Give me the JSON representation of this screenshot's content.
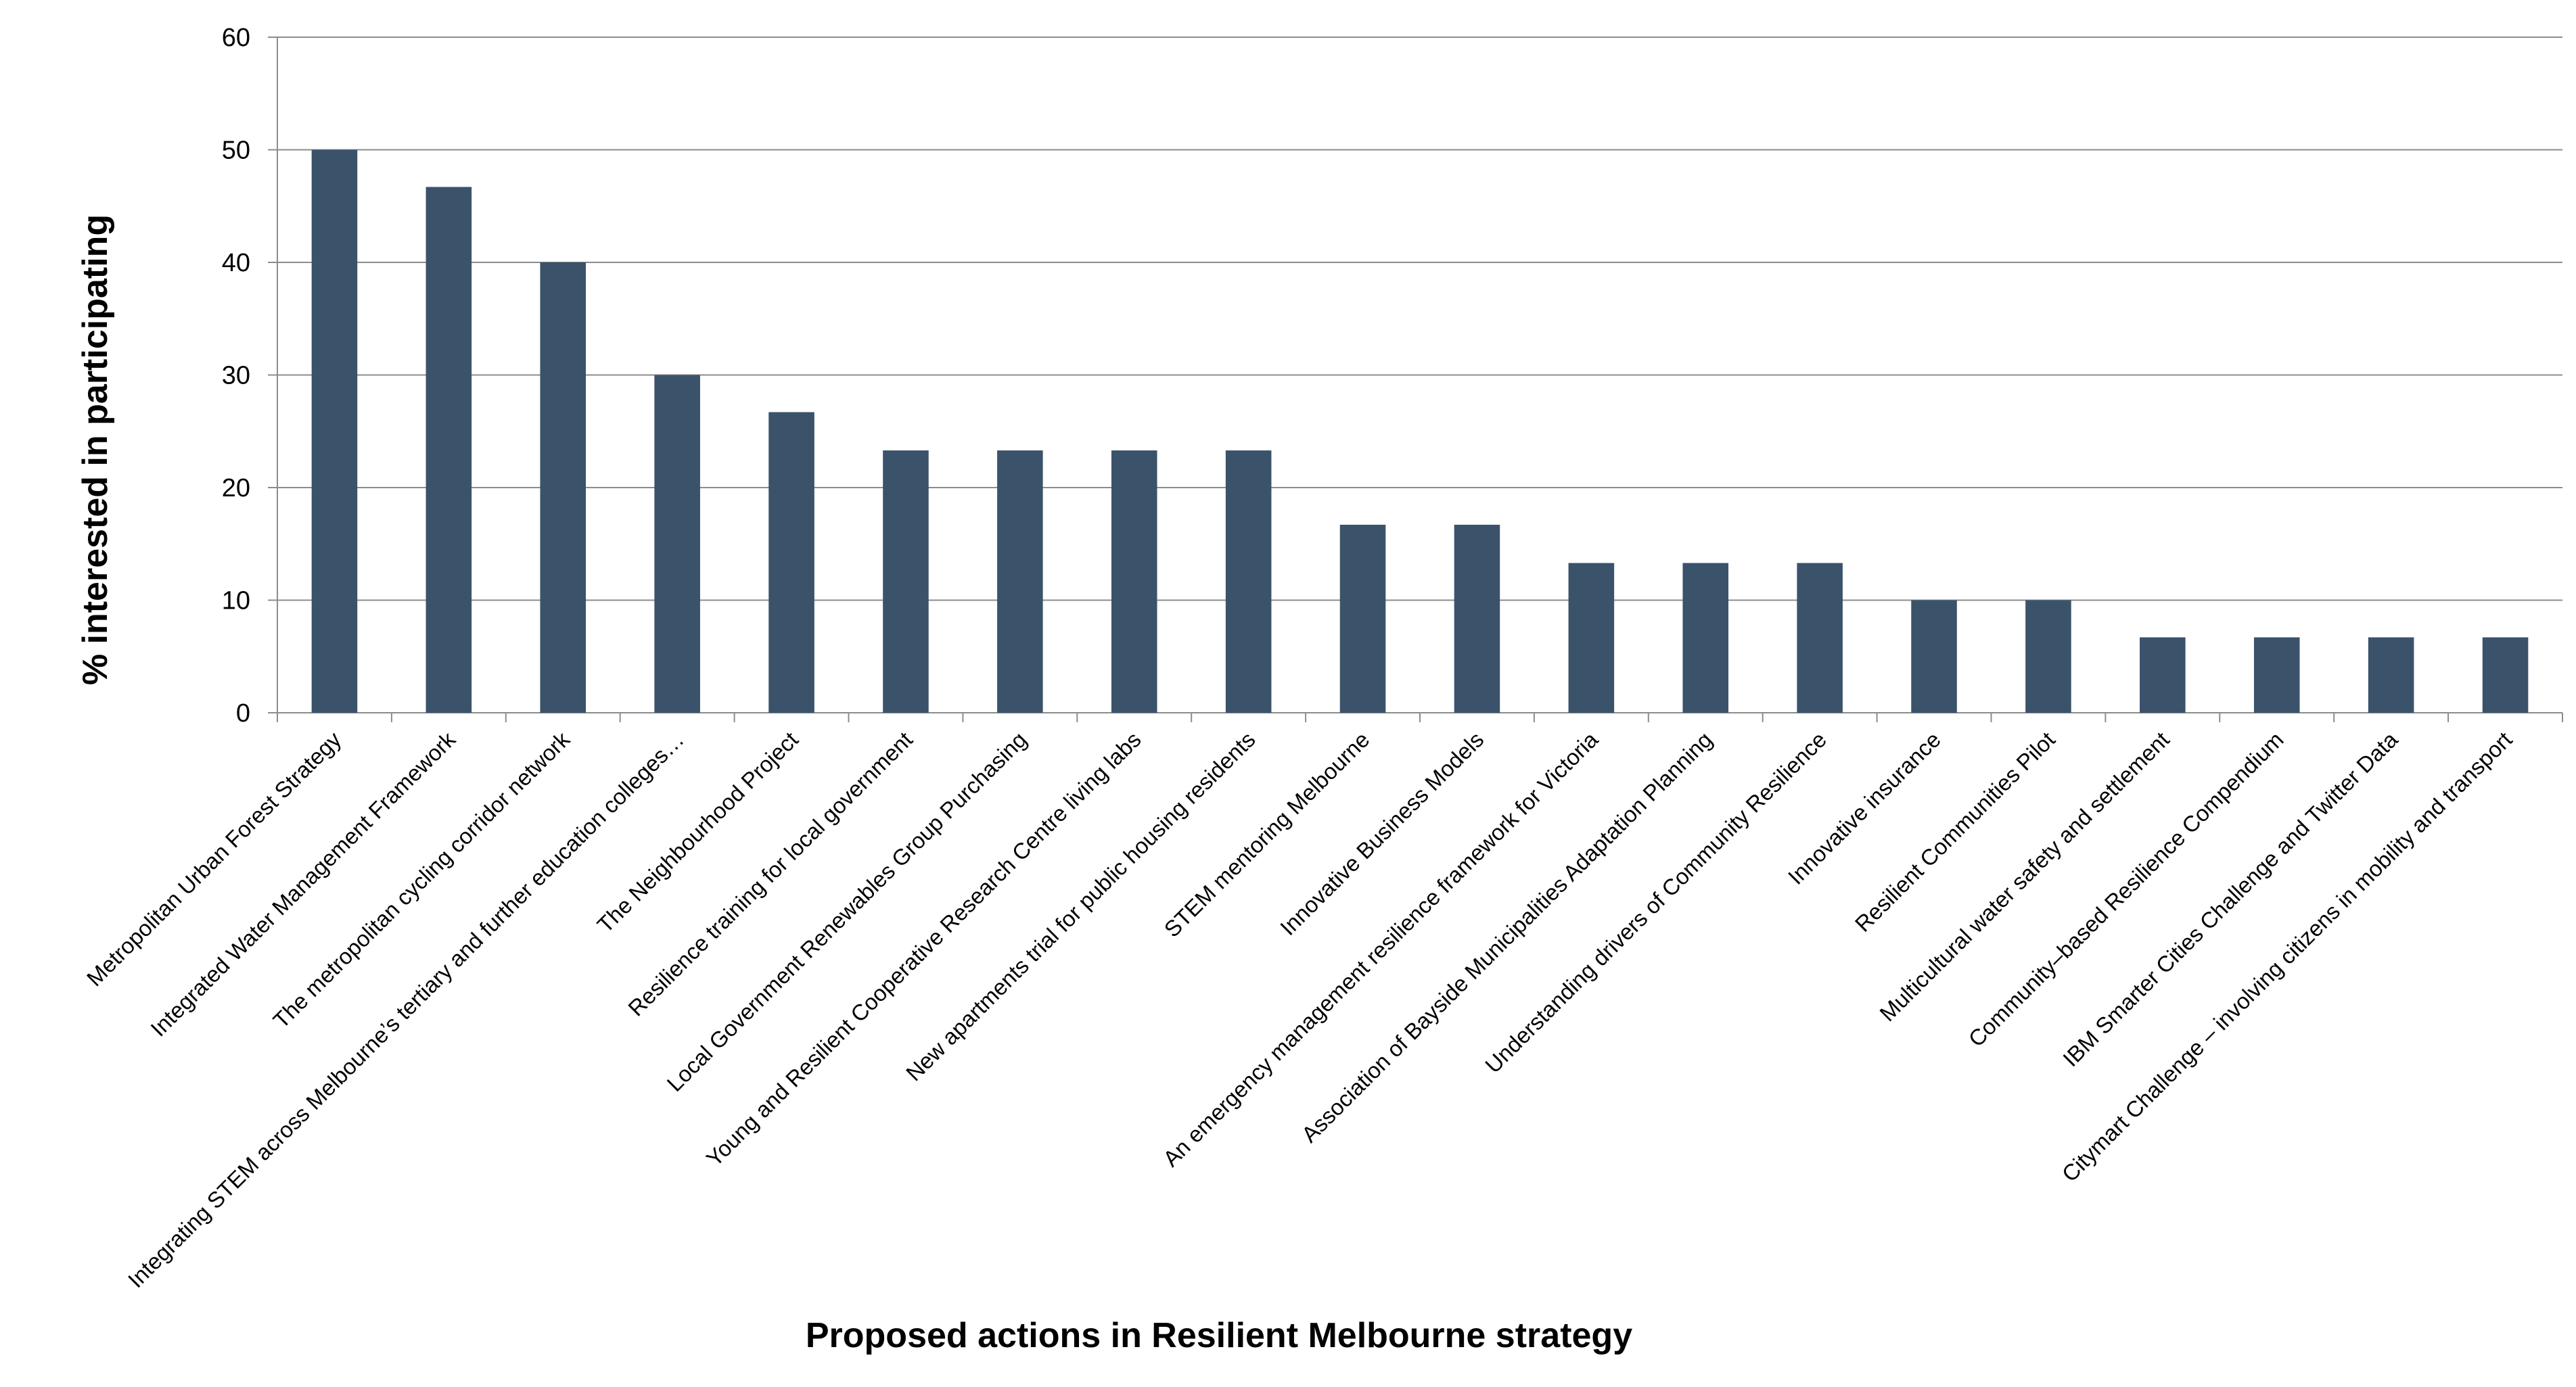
{
  "chart_data": {
    "type": "bar",
    "title": "",
    "xlabel": "Proposed actions in Resilient Melbourne strategy",
    "ylabel": "% interested in participating",
    "ylim": [
      0,
      60
    ],
    "yticks": [
      "0",
      "10",
      "20",
      "30",
      "40",
      "50",
      "60"
    ],
    "grid": "horizontal",
    "legend": "none",
    "bar_color": "#3b526b",
    "categories": [
      "Metropolitan Urban Forest Strategy",
      "Integrated Water Management Framework",
      "The metropolitan cycling corridor network",
      "Integrating STEM across Melbourne’s tertiary and further education colleges…",
      "The Neighbourhood Project",
      "Resilience training for local government",
      "Local Government Renewables Group Purchasing",
      "Young and Resilient Cooperative Research Centre living labs",
      "New apartments trial for public housing residents",
      "STEM mentoring Melbourne",
      "Innovative Business Models",
      "An emergency management resilience framework for Victoria",
      "Association of Bayside Municipalities Adaptation Planning",
      "Understanding drivers of Community Resilience",
      "Innovative insurance",
      "Resilient Communities Pilot",
      "Multicultural water safety and settlement",
      "Community–based Resilience Compendium",
      "IBM Smarter Cities Challenge and Twitter Data",
      "Citymart Challenge – involving citizens in mobility and transport"
    ],
    "values": [
      50,
      46.7,
      40,
      30,
      26.7,
      23.3,
      23.3,
      23.3,
      23.3,
      16.7,
      16.7,
      13.3,
      13.3,
      13.3,
      10,
      10,
      6.7,
      6.7,
      6.7,
      6.7
    ]
  }
}
